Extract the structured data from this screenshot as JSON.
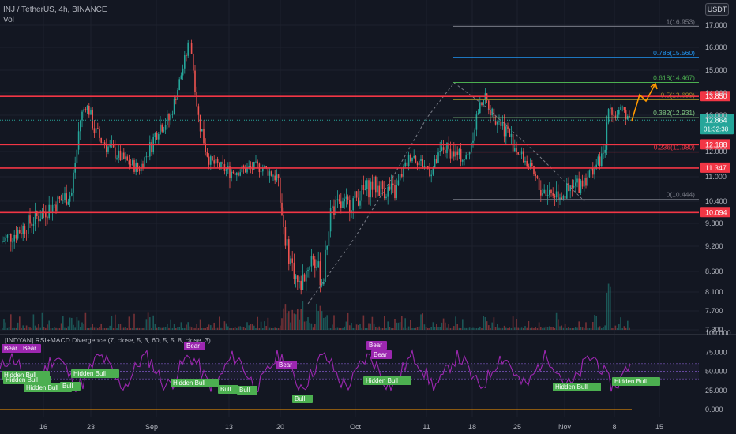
{
  "header": {
    "symbol_line": "INJ / TetherUS, 4h, BINANCE",
    "volume_label": "Vol",
    "currency_button": "USDT"
  },
  "price_axis": {
    "ticks": [
      "17.000",
      "16.000",
      "15.000",
      "14.000",
      "13.000",
      "12.000",
      "11.000",
      "10.400",
      "9.800",
      "9.200",
      "8.600",
      "8.100",
      "7.700",
      "7.300"
    ],
    "current_price": "12.864",
    "countdown": "01:32:38",
    "level_labels": [
      "13.850",
      "12.188",
      "11.347",
      "10.094"
    ]
  },
  "time_axis": {
    "labels": [
      "16",
      "23",
      "Sep",
      "13",
      "20",
      "Oct",
      "11",
      "18",
      "25",
      "Nov",
      "8",
      "15"
    ]
  },
  "fibonacci": [
    {
      "ratio": "1",
      "price": "16.953",
      "label": "1(16.953)",
      "color": "#787b86"
    },
    {
      "ratio": "0.786",
      "price": "15.560",
      "label": "0.786(15.560)",
      "color": "#2196f3"
    },
    {
      "ratio": "0.618",
      "price": "14.467",
      "label": "0.618(14.467)",
      "color": "#4caf50"
    },
    {
      "ratio": "0.5",
      "price": "13.699",
      "label": "0.5(13.699)",
      "color": "#9c8c2b"
    },
    {
      "ratio": "0.382",
      "price": "12.931",
      "label": "0.382(12.931)",
      "color": "#81c784"
    },
    {
      "ratio": "0.236",
      "price": "11.980",
      "label": "0.236(11.980)",
      "color": "#f23645"
    },
    {
      "ratio": "0",
      "price": "10.444",
      "label": "0(10.444)",
      "color": "#787b86"
    }
  ],
  "horizontal_levels": [
    13.85,
    12.188,
    11.347,
    10.094
  ],
  "indicator": {
    "title": "[INDYAN] RSI+MACD Divergence (7, close, 5, 3, 60, 5, 5, 8, close, 3)",
    "axis_ticks": [
      "100.000",
      "75.000",
      "50.000",
      "25.000",
      "0.000"
    ],
    "signals": [
      {
        "text": "Bear",
        "kind": "bear"
      },
      {
        "text": "Bear",
        "kind": "bear"
      },
      {
        "text": "Hidden Bull",
        "kind": "bull"
      },
      {
        "text": "Hidden Bull",
        "kind": "bull"
      },
      {
        "text": "Hidden Bull",
        "kind": "bull"
      },
      {
        "text": "Bull",
        "kind": "bull"
      },
      {
        "text": "Hidden Bull",
        "kind": "bull"
      },
      {
        "text": "Bear",
        "kind": "bear"
      },
      {
        "text": "Hidden Bull",
        "kind": "bull"
      },
      {
        "text": "Bull",
        "kind": "bull"
      },
      {
        "text": "Bull",
        "kind": "bull"
      },
      {
        "text": "Bear",
        "kind": "bear"
      },
      {
        "text": "Bull",
        "kind": "bull"
      },
      {
        "text": "Bear",
        "kind": "bear"
      },
      {
        "text": "Bear",
        "kind": "bear"
      },
      {
        "text": "Hidden Bull",
        "kind": "bull"
      },
      {
        "text": "Hidden Bull",
        "kind": "bull"
      },
      {
        "text": "Hidden Bull",
        "kind": "bull"
      }
    ]
  },
  "colors": {
    "background": "#131722",
    "bull": "#26a69a",
    "bear": "#ef5350",
    "level": "#f23645",
    "current_price": "#26a69a",
    "projection": "#ff9800",
    "rsi": "#9c27b0",
    "bull_tag": "#4caf50",
    "bear_tag": "#9c27b0"
  }
}
